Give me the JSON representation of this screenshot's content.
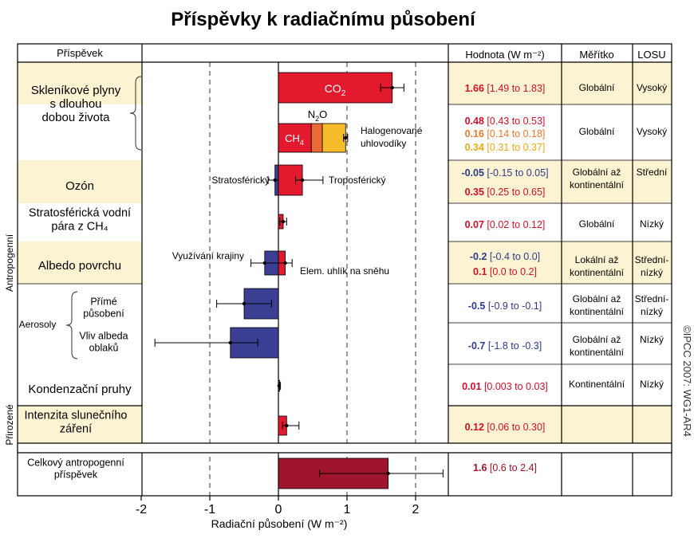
{
  "chart_data": {
    "type": "bar",
    "title": "Příspěvky k radiačnímu působení",
    "xlabel": "Radiační působení (W m⁻²)",
    "xlim": [
      -2,
      2.5
    ],
    "xticks": [
      -2,
      -1,
      0,
      1,
      2
    ],
    "grid": "dashed vertical at -1, 1, 2",
    "headers": {
      "contribution": "Příspěvek",
      "value": "Hodnota (W m⁻²)",
      "scale": "Měřítko",
      "losu": "LOSU"
    },
    "side_labels": {
      "anthropogenic": "Antropogenní",
      "natural": "Přirozené",
      "aerosols": "Aerosoly"
    },
    "copyright": "©IPCC 2007: WG1-AR4",
    "rows": [
      {
        "labels": [
          "Skleníkové plyny",
          "s dlouhou",
          "dobou života"
        ],
        "scale": [
          "Globální"
        ],
        "losu": [
          "Vysoký"
        ],
        "components": [
          {
            "name": "CO2",
            "value": 1.66,
            "low": 1.49,
            "high": 1.83,
            "color": "#e31a2d",
            "text": "1.66",
            "range": "[1.49 to 1.83]",
            "text_color": "#d0102a"
          }
        ]
      },
      {
        "labels": [],
        "scale": [
          "Globální"
        ],
        "losu": [
          "Vysoký"
        ],
        "stacked_label": "Halogenované uhlovodíky",
        "components": [
          {
            "name": "CH4",
            "value": 0.48,
            "low": 0.43,
            "high": 0.53,
            "color": "#e31a2d",
            "text": "0.48",
            "range": "[0.43 to 0.53]",
            "text_color": "#d0102a"
          },
          {
            "name": "N2O",
            "value": 0.16,
            "low": 0.14,
            "high": 0.18,
            "color": "#ec6a33",
            "text": "0.16",
            "range": "[0.14 to 0.18]",
            "text_color": "#e8792e"
          },
          {
            "name": "Halogenované uhlovodíky",
            "value": 0.34,
            "low": 0.31,
            "high": 0.37,
            "color": "#f6bb2a",
            "text": "0.34",
            "range": "[0.31 to 0.37]",
            "text_color": "#ecaa16"
          }
        ]
      },
      {
        "labels": [
          "Ozón"
        ],
        "scale": [
          "Globální až",
          "kontinentální"
        ],
        "losu": [
          "Střední"
        ],
        "components": [
          {
            "name": "Stratosférický",
            "value": -0.05,
            "low": -0.15,
            "high": 0.05,
            "color": "#3a3f93",
            "text": "-0.05",
            "range": "[-0.15 to 0.05]",
            "text_color": "#2e3a8c"
          },
          {
            "name": "Troposférický",
            "value": 0.35,
            "low": 0.25,
            "high": 0.65,
            "color": "#e31a2d",
            "text": "0.35",
            "range": "[0.25 to 0.65]",
            "text_color": "#d0102a"
          }
        ]
      },
      {
        "labels": [
          "Stratosférická vodní",
          "pára z CH₄"
        ],
        "scale": [
          "Globální"
        ],
        "losu": [
          "Nízký"
        ],
        "components": [
          {
            "name": "Stratosférická vodní pára",
            "value": 0.07,
            "low": 0.02,
            "high": 0.12,
            "color": "#e31a2d",
            "text": "0.07",
            "range": "[0.02 to 0.12]",
            "text_color": "#d0102a"
          }
        ]
      },
      {
        "labels": [
          "Albedo povrchu"
        ],
        "scale": [
          "Lokální až",
          "kontinentální"
        ],
        "losu": [
          "Střední-",
          "nízký"
        ],
        "components": [
          {
            "name": "Využívání krajiny",
            "value": -0.2,
            "low": -0.4,
            "high": 0.0,
            "color": "#3a3f93",
            "text": "-0.2",
            "range": "[-0.4 to 0.0]",
            "text_color": "#2e3a8c"
          },
          {
            "name": "Elem. uhlík na sněhu",
            "value": 0.1,
            "low": 0.0,
            "high": 0.2,
            "color": "#e31a2d",
            "text": "0.1",
            "range": "[0.0 to 0.2]",
            "text_color": "#d0102a"
          }
        ]
      },
      {
        "labels": [
          "Přímé",
          "působení"
        ],
        "scale": [
          "Globální až",
          "kontinentální"
        ],
        "losu": [
          "Střední-",
          "nízký"
        ],
        "components": [
          {
            "name": "Přímé působení",
            "value": -0.5,
            "low": -0.9,
            "high": -0.1,
            "color": "#3a3f93",
            "text": "-0.5",
            "range": "[-0.9 to -0.1]",
            "text_color": "#2e3a8c"
          }
        ]
      },
      {
        "labels": [
          "Vliv albeda",
          "oblaků"
        ],
        "scale": [
          "Globální až",
          "kontinentální"
        ],
        "losu": [
          "Nízký"
        ],
        "components": [
          {
            "name": "Vliv albeda oblaků",
            "value": -0.7,
            "low": -1.8,
            "high": -0.3,
            "color": "#3a3f93",
            "text": "-0.7",
            "range": "[-1.8 to -0.3]",
            "text_color": "#2e3a8c"
          }
        ]
      },
      {
        "labels": [
          "Kondenzační pruhy"
        ],
        "scale": [
          "Kontinentální"
        ],
        "losu": [
          "Nízký"
        ],
        "components": [
          {
            "name": "Kondenzační pruhy",
            "value": 0.01,
            "low": 0.003,
            "high": 0.03,
            "color": "#e31a2d",
            "text": "0.01",
            "range": "[0.003 to 0.03]",
            "text_color": "#d0102a"
          }
        ]
      },
      {
        "labels": [
          "Intenzita slunečního",
          "záření"
        ],
        "scale": [],
        "losu": [],
        "components": [
          {
            "name": "Intenzita slunečního záření",
            "value": 0.12,
            "low": 0.06,
            "high": 0.3,
            "color": "#e31a2d",
            "text": "0.12",
            "range": "[0.06 to 0.30]",
            "text_color": "#d0102a"
          }
        ]
      },
      {
        "labels": [
          "Celkový antropogenní",
          "příspěvek"
        ],
        "scale": [],
        "losu": [],
        "components": [
          {
            "name": "Celkový antropogenní příspěvek",
            "value": 1.6,
            "low": 0.6,
            "high": 2.4,
            "color": "#a0152b",
            "text": "1.6",
            "range": "[0.6 to 2.4]",
            "text_color": "#9a1426"
          }
        ]
      }
    ]
  }
}
